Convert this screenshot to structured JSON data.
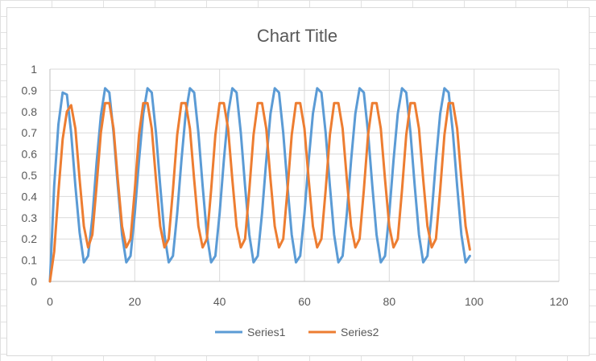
{
  "chart_data": {
    "type": "line",
    "title": "Chart Title",
    "xlabel": "",
    "ylabel": "",
    "xlim": [
      0,
      120
    ],
    "ylim": [
      0,
      1
    ],
    "xticks": [
      0,
      20,
      40,
      60,
      80,
      100,
      120
    ],
    "yticks": [
      0,
      0.1,
      0.2,
      0.3,
      0.4,
      0.5,
      0.6,
      0.7,
      0.8,
      0.9,
      1
    ],
    "grid": true,
    "legend_position": "bottom",
    "series": [
      {
        "name": "Series1",
        "color": "#5B9BD5",
        "x": [
          0,
          1,
          2,
          3,
          4,
          5,
          6,
          7,
          8,
          9,
          10,
          11,
          12,
          13,
          14,
          15,
          16,
          17,
          18,
          19,
          20,
          21,
          22,
          23,
          24,
          25,
          26,
          27,
          28,
          29,
          30,
          31,
          32,
          33,
          34,
          35,
          36,
          37,
          38,
          39,
          40,
          41,
          42,
          43,
          44,
          45,
          46,
          47,
          48,
          49,
          50,
          51,
          52,
          53,
          54,
          55,
          56,
          57,
          58,
          59,
          60,
          61,
          62,
          63,
          64,
          65,
          66,
          67,
          68,
          69,
          70,
          71,
          72,
          73,
          74,
          75,
          76,
          77,
          78,
          79,
          80,
          81,
          82,
          83,
          84,
          85,
          86,
          87,
          88,
          89,
          90,
          91,
          92,
          93,
          94,
          95,
          96,
          97,
          98,
          99
        ],
        "y": [
          0,
          0.45,
          0.74,
          0.89,
          0.88,
          0.7,
          0.45,
          0.23,
          0.09,
          0.12,
          0.3,
          0.56,
          0.78,
          0.91,
          0.89,
          0.7,
          0.45,
          0.22,
          0.09,
          0.12,
          0.32,
          0.57,
          0.79,
          0.91,
          0.89,
          0.7,
          0.45,
          0.22,
          0.09,
          0.12,
          0.32,
          0.57,
          0.79,
          0.91,
          0.89,
          0.7,
          0.45,
          0.22,
          0.09,
          0.12,
          0.32,
          0.57,
          0.79,
          0.91,
          0.89,
          0.7,
          0.45,
          0.22,
          0.09,
          0.12,
          0.32,
          0.57,
          0.79,
          0.91,
          0.89,
          0.7,
          0.45,
          0.22,
          0.09,
          0.12,
          0.32,
          0.57,
          0.79,
          0.91,
          0.89,
          0.7,
          0.45,
          0.22,
          0.09,
          0.12,
          0.32,
          0.57,
          0.79,
          0.91,
          0.89,
          0.7,
          0.45,
          0.22,
          0.09,
          0.12,
          0.32,
          0.57,
          0.79,
          0.91,
          0.89,
          0.7,
          0.45,
          0.22,
          0.09,
          0.12,
          0.32,
          0.57,
          0.79,
          0.91,
          0.89,
          0.7,
          0.45,
          0.22,
          0.09,
          0.12
        ]
      },
      {
        "name": "Series2",
        "color": "#ED7D31",
        "x": [
          0,
          1,
          2,
          3,
          4,
          5,
          6,
          7,
          8,
          9,
          10,
          11,
          12,
          13,
          14,
          15,
          16,
          17,
          18,
          19,
          20,
          21,
          22,
          23,
          24,
          25,
          26,
          27,
          28,
          29,
          30,
          31,
          32,
          33,
          34,
          35,
          36,
          37,
          38,
          39,
          40,
          41,
          42,
          43,
          44,
          45,
          46,
          47,
          48,
          49,
          50,
          51,
          52,
          53,
          54,
          55,
          56,
          57,
          58,
          59,
          60,
          61,
          62,
          63,
          64,
          65,
          66,
          67,
          68,
          69,
          70,
          71,
          72,
          73,
          74,
          75,
          76,
          77,
          78,
          79,
          80,
          81,
          82,
          83,
          84,
          85,
          86,
          87,
          88,
          89,
          90,
          91,
          92,
          93,
          94,
          95,
          96,
          97,
          98,
          99
        ],
        "y": [
          0,
          0.14,
          0.42,
          0.67,
          0.8,
          0.83,
          0.72,
          0.48,
          0.26,
          0.16,
          0.22,
          0.45,
          0.7,
          0.84,
          0.84,
          0.72,
          0.48,
          0.26,
          0.16,
          0.2,
          0.43,
          0.69,
          0.84,
          0.84,
          0.72,
          0.48,
          0.26,
          0.16,
          0.2,
          0.43,
          0.69,
          0.84,
          0.84,
          0.72,
          0.48,
          0.26,
          0.16,
          0.2,
          0.43,
          0.69,
          0.84,
          0.84,
          0.72,
          0.48,
          0.26,
          0.16,
          0.2,
          0.43,
          0.69,
          0.84,
          0.84,
          0.72,
          0.48,
          0.26,
          0.16,
          0.2,
          0.43,
          0.69,
          0.84,
          0.84,
          0.72,
          0.48,
          0.26,
          0.16,
          0.2,
          0.43,
          0.69,
          0.84,
          0.84,
          0.72,
          0.48,
          0.26,
          0.16,
          0.2,
          0.43,
          0.69,
          0.84,
          0.84,
          0.72,
          0.48,
          0.26,
          0.16,
          0.2,
          0.43,
          0.69,
          0.84,
          0.84,
          0.72,
          0.48,
          0.26,
          0.16,
          0.2,
          0.43,
          0.69,
          0.84,
          0.84,
          0.72,
          0.48,
          0.26,
          0.15
        ]
      }
    ]
  }
}
